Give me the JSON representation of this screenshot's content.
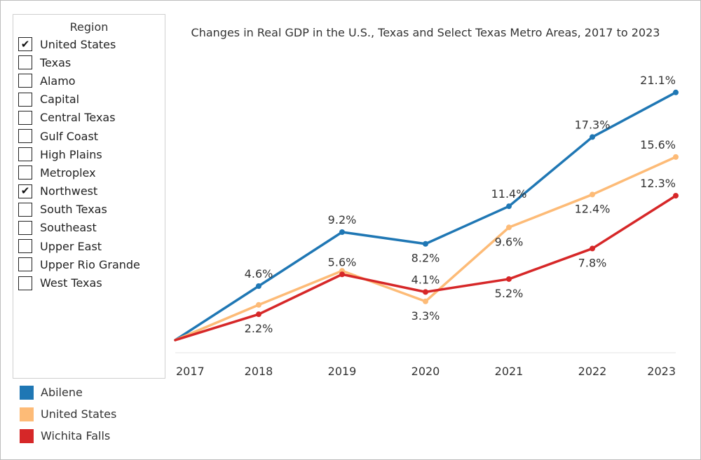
{
  "filter": {
    "title": "Region",
    "items": [
      {
        "label": "United States",
        "checked": true
      },
      {
        "label": "Texas",
        "checked": false
      },
      {
        "label": "Alamo",
        "checked": false
      },
      {
        "label": "Capital",
        "checked": false
      },
      {
        "label": "Central Texas",
        "checked": false
      },
      {
        "label": "Gulf Coast",
        "checked": false
      },
      {
        "label": "High Plains",
        "checked": false
      },
      {
        "label": "Metroplex",
        "checked": false
      },
      {
        "label": "Northwest",
        "checked": true
      },
      {
        "label": "South Texas",
        "checked": false
      },
      {
        "label": "Southeast",
        "checked": false
      },
      {
        "label": "Upper East",
        "checked": false
      },
      {
        "label": "Upper Rio Grande",
        "checked": false
      },
      {
        "label": "West Texas",
        "checked": false
      }
    ]
  },
  "legend": [
    {
      "label": "Abilene",
      "color": "#1f77b4"
    },
    {
      "label": "United States",
      "color": "#fdbb77"
    },
    {
      "label": "Wichita Falls",
      "color": "#d62728"
    }
  ],
  "chart_data": {
    "type": "line",
    "title": "Changes in Real GDP in the U.S., Texas and Select Texas Metro Areas, 2017 to 2023",
    "xlabel": "",
    "ylabel": "",
    "x": [
      "2017",
      "2018",
      "2019",
      "2020",
      "2021",
      "2022",
      "2023"
    ],
    "ylim": [
      0,
      23
    ],
    "grid": false,
    "legend_position": "bottom-left",
    "series": [
      {
        "name": "Abilene",
        "color": "#1f77b4",
        "values": [
          0,
          4.6,
          9.2,
          8.2,
          11.4,
          17.3,
          21.1
        ],
        "labels": [
          "",
          "4.6%",
          "9.2%",
          "8.2%",
          "11.4%",
          "17.3%",
          "21.1%"
        ],
        "label_pos": [
          "above",
          "above",
          "above",
          "below",
          "above",
          "above",
          "above"
        ]
      },
      {
        "name": "United States",
        "color": "#fdbb77",
        "values": [
          0,
          3.0,
          5.9,
          3.3,
          9.6,
          12.4,
          15.6
        ],
        "labels": [
          "",
          "",
          "",
          "3.3%",
          "9.6%",
          "12.4%",
          "15.6%"
        ],
        "label_pos": [
          "above",
          "above",
          "above",
          "below",
          "below",
          "below",
          "above"
        ]
      },
      {
        "name": "Wichita Falls",
        "color": "#d62728",
        "values": [
          0,
          2.2,
          5.6,
          4.1,
          5.2,
          7.8,
          12.3
        ],
        "labels": [
          "",
          "2.2%",
          "5.6%",
          "4.1%",
          "5.2%",
          "7.8%",
          "12.3%"
        ],
        "label_pos": [
          "above",
          "below",
          "above",
          "above",
          "below",
          "below",
          "above"
        ]
      }
    ]
  }
}
